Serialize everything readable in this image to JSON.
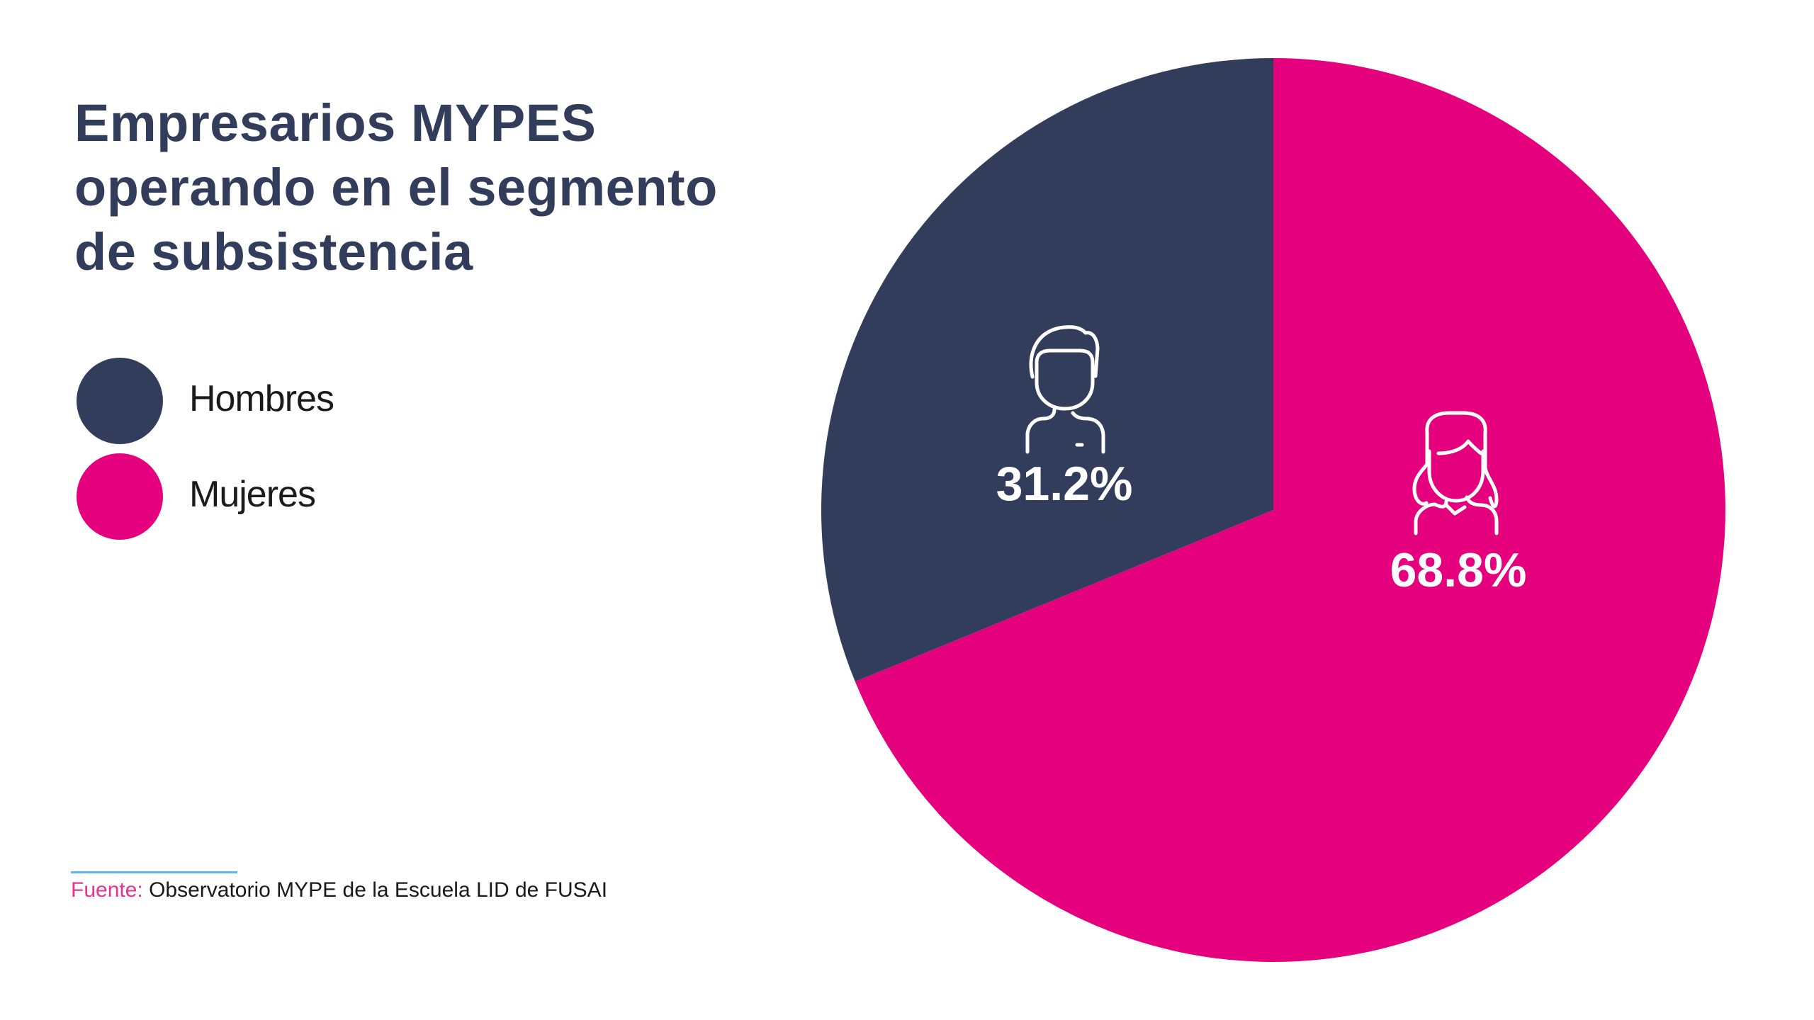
{
  "title": {
    "lines": [
      "Empresarios MYPES",
      "operando en el segmento",
      "de subsistencia"
    ]
  },
  "legend": {
    "items": [
      {
        "label": "Hombres",
        "color": "#323D5B"
      },
      {
        "label": "Mujeres",
        "color": "#E5007E"
      }
    ]
  },
  "source": {
    "label": "Fuente:",
    "text": "Observatorio MYPE de la Escuela LID de FUSAI",
    "label_color": "#E6348E",
    "rule_color": "#5BB8E8"
  },
  "chart_data": {
    "type": "pie",
    "title": "Empresarios MYPES operando en el segmento de subsistencia",
    "categories": [
      "Mujeres",
      "Hombres"
    ],
    "values": [
      68.8,
      31.2
    ],
    "labels": [
      "68.8%",
      "31.2%"
    ],
    "colors": [
      "#E5007E",
      "#323D5B"
    ],
    "icons": [
      "woman-icon",
      "man-icon"
    ],
    "start_angle": "top",
    "direction": "clockwise",
    "legend_position": "left"
  }
}
